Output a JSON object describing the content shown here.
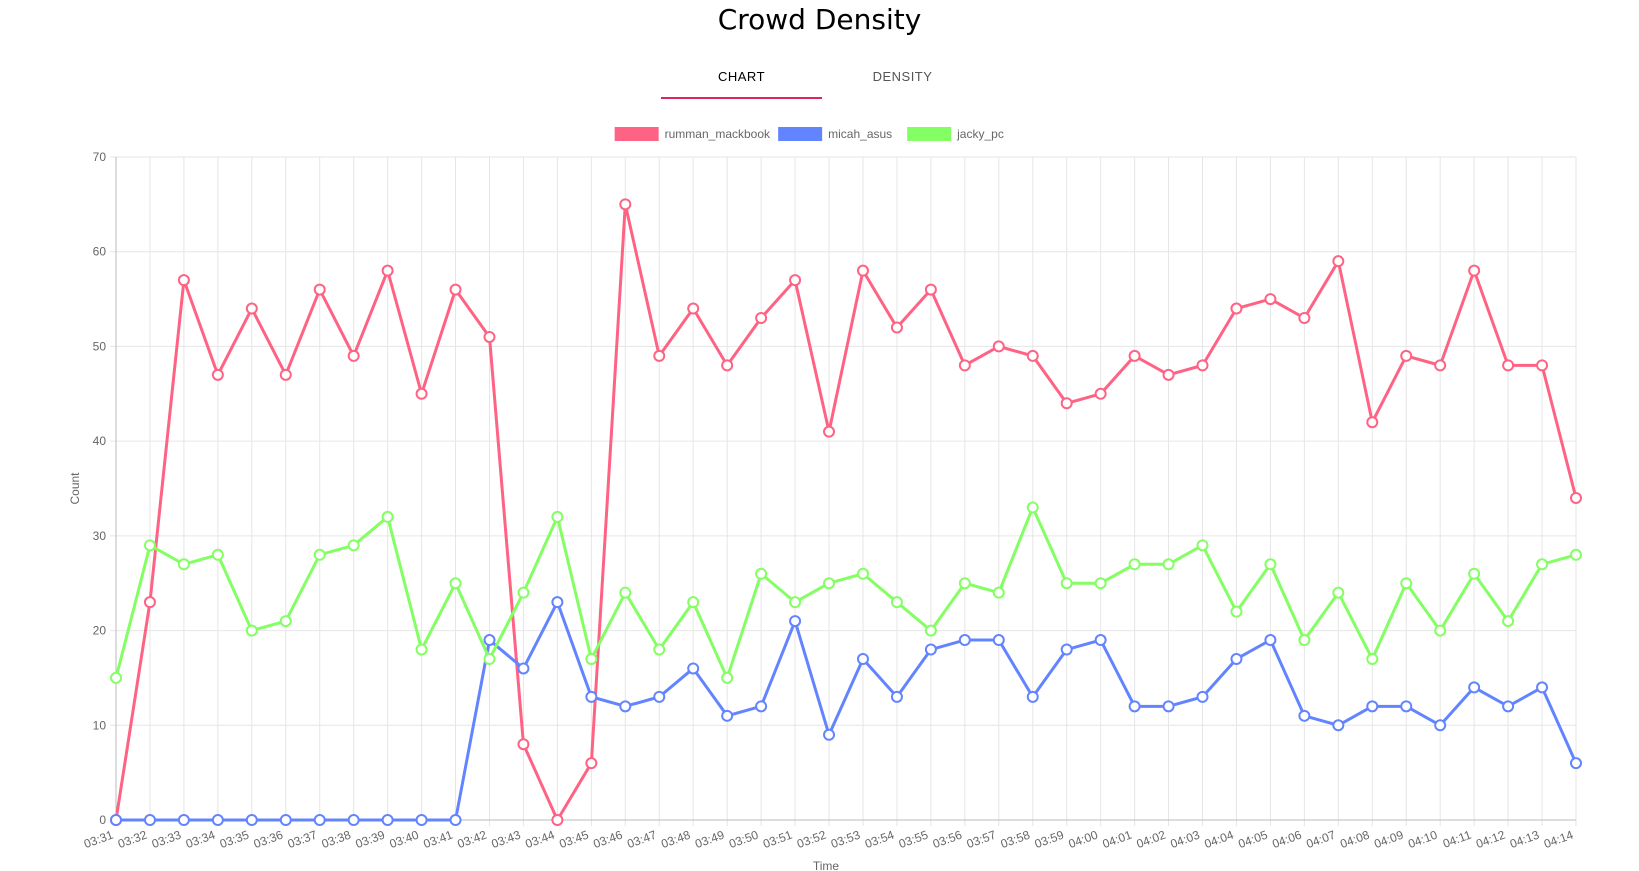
{
  "page": {
    "title": "Crowd Density"
  },
  "tabs": [
    {
      "label": "CHART",
      "active": true
    },
    {
      "label": "DENSITY",
      "active": false
    }
  ],
  "chart_data": {
    "type": "line",
    "xlabel": "Time",
    "ylabel": "Count",
    "ylim": [
      0,
      70
    ],
    "yticks": [
      0,
      10,
      20,
      30,
      40,
      50,
      60,
      70
    ],
    "grid": true,
    "legend_position": "top",
    "x": [
      "03:31",
      "03:32",
      "03:33",
      "03:34",
      "03:35",
      "03:36",
      "03:37",
      "03:38",
      "03:39",
      "03:40",
      "03:41",
      "03:42",
      "03:43",
      "03:44",
      "03:45",
      "03:46",
      "03:47",
      "03:48",
      "03:49",
      "03:50",
      "03:51",
      "03:52",
      "03:53",
      "03:54",
      "03:55",
      "03:56",
      "03:57",
      "03:58",
      "03:59",
      "04:00",
      "04:01",
      "04:02",
      "04:03",
      "04:04",
      "04:05",
      "04:06",
      "04:07",
      "04:08",
      "04:09",
      "04:10",
      "04:11",
      "04:12",
      "04:13",
      "04:14"
    ],
    "series": [
      {
        "name": "rumman_mackbook",
        "color": "#ff6384",
        "values": [
          0,
          23,
          57,
          47,
          54,
          47,
          56,
          49,
          58,
          45,
          56,
          51,
          8,
          0,
          6,
          65,
          49,
          54,
          48,
          53,
          57,
          41,
          58,
          52,
          56,
          48,
          50,
          49,
          44,
          45,
          49,
          47,
          48,
          54,
          55,
          53,
          59,
          42,
          49,
          48,
          58,
          48,
          48,
          34
        ]
      },
      {
        "name": "micah_asus",
        "color": "#6384ff",
        "values": [
          0,
          0,
          0,
          0,
          0,
          0,
          0,
          0,
          0,
          0,
          0,
          19,
          16,
          23,
          13,
          12,
          13,
          16,
          11,
          12,
          21,
          9,
          17,
          13,
          18,
          19,
          19,
          13,
          18,
          19,
          12,
          12,
          13,
          17,
          19,
          11,
          10,
          12,
          12,
          10,
          14,
          12,
          14,
          6
        ]
      },
      {
        "name": "jacky_pc",
        "color": "#84ff63",
        "values": [
          15,
          29,
          27,
          28,
          20,
          21,
          28,
          29,
          32,
          18,
          25,
          17,
          24,
          32,
          17,
          24,
          18,
          23,
          15,
          26,
          23,
          25,
          26,
          23,
          20,
          25,
          24,
          33,
          25,
          25,
          27,
          27,
          29,
          22,
          27,
          19,
          24,
          17,
          25,
          20,
          26,
          21,
          27,
          28
        ]
      }
    ]
  }
}
